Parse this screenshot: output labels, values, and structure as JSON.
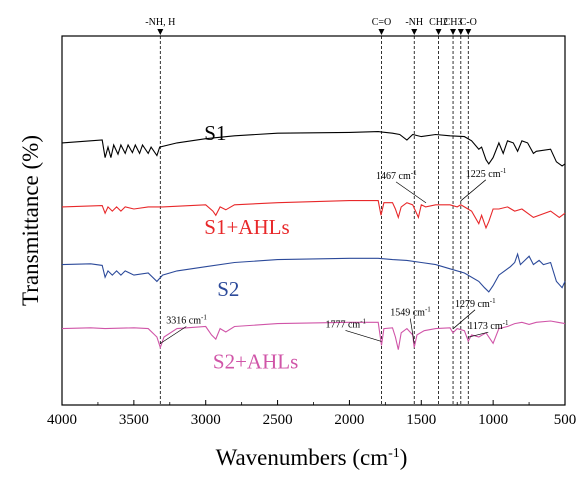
{
  "chart_data": {
    "type": "line",
    "xlabel": "Wavenumbers (cm",
    "xlabel_sup": "-1",
    "xlabel_close": ")",
    "ylabel": "Transmittance (%)",
    "xlim": [
      4000,
      500
    ],
    "x_reversed": true,
    "xticks": [
      4000,
      3500,
      3000,
      2500,
      2000,
      1500,
      1000,
      500
    ],
    "grid": false,
    "legend": "inline",
    "series": [
      {
        "name": "S1",
        "color": "#000000",
        "offset": 3,
        "points": [
          [
            4000,
            0.55
          ],
          [
            3800,
            0.6
          ],
          [
            3720,
            0.62
          ],
          [
            3700,
            0.2
          ],
          [
            3680,
            0.45
          ],
          [
            3660,
            0.2
          ],
          [
            3640,
            0.5
          ],
          [
            3610,
            0.28
          ],
          [
            3590,
            0.5
          ],
          [
            3560,
            0.3
          ],
          [
            3540,
            0.5
          ],
          [
            3510,
            0.32
          ],
          [
            3490,
            0.5
          ],
          [
            3460,
            0.3
          ],
          [
            3440,
            0.5
          ],
          [
            3400,
            0.3
          ],
          [
            3380,
            0.45
          ],
          [
            3340,
            0.25
          ],
          [
            3320,
            0.45
          ],
          [
            3200,
            0.55
          ],
          [
            3000,
            0.65
          ],
          [
            2800,
            0.72
          ],
          [
            2500,
            0.78
          ],
          [
            2000,
            0.8
          ],
          [
            1800,
            0.82
          ],
          [
            1700,
            0.78
          ],
          [
            1650,
            0.75
          ],
          [
            1600,
            0.62
          ],
          [
            1560,
            0.75
          ],
          [
            1500,
            0.7
          ],
          [
            1400,
            0.75
          ],
          [
            1300,
            0.72
          ],
          [
            1200,
            0.7
          ],
          [
            1150,
            0.6
          ],
          [
            1100,
            0.4
          ],
          [
            1080,
            0.45
          ],
          [
            1050,
            0.15
          ],
          [
            1030,
            0.05
          ],
          [
            1000,
            0.2
          ],
          [
            960,
            0.55
          ],
          [
            930,
            0.3
          ],
          [
            900,
            0.6
          ],
          [
            860,
            0.55
          ],
          [
            830,
            0.35
          ],
          [
            800,
            0.6
          ],
          [
            760,
            0.55
          ],
          [
            720,
            0.3
          ],
          [
            700,
            0.35
          ],
          [
            600,
            0.4
          ],
          [
            560,
            0.1
          ],
          [
            520,
            0.0
          ],
          [
            500,
            0.05
          ]
        ]
      },
      {
        "name": "S1+AHLs",
        "color": "#e8282a",
        "offset": 2,
        "points": [
          [
            4000,
            0.55
          ],
          [
            3720,
            0.58
          ],
          [
            3700,
            0.4
          ],
          [
            3680,
            0.55
          ],
          [
            3650,
            0.45
          ],
          [
            3620,
            0.55
          ],
          [
            3590,
            0.45
          ],
          [
            3560,
            0.55
          ],
          [
            3500,
            0.5
          ],
          [
            3400,
            0.55
          ],
          [
            3300,
            0.55
          ],
          [
            3000,
            0.6
          ],
          [
            2950,
            0.45
          ],
          [
            2930,
            0.35
          ],
          [
            2900,
            0.55
          ],
          [
            2860,
            0.48
          ],
          [
            2800,
            0.6
          ],
          [
            2500,
            0.65
          ],
          [
            2000,
            0.7
          ],
          [
            1800,
            0.7
          ],
          [
            1780,
            0.35
          ],
          [
            1760,
            0.65
          ],
          [
            1700,
            0.65
          ],
          [
            1680,
            0.5
          ],
          [
            1660,
            0.3
          ],
          [
            1640,
            0.55
          ],
          [
            1600,
            0.65
          ],
          [
            1560,
            0.6
          ],
          [
            1520,
            0.3
          ],
          [
            1500,
            0.6
          ],
          [
            1470,
            0.55
          ],
          [
            1400,
            0.6
          ],
          [
            1300,
            0.6
          ],
          [
            1250,
            0.55
          ],
          [
            1225,
            0.6
          ],
          [
            1200,
            0.55
          ],
          [
            1150,
            0.45
          ],
          [
            1100,
            0.15
          ],
          [
            1080,
            0.35
          ],
          [
            1050,
            0.05
          ],
          [
            1030,
            0.2
          ],
          [
            1000,
            0.5
          ],
          [
            960,
            0.5
          ],
          [
            900,
            0.55
          ],
          [
            850,
            0.45
          ],
          [
            800,
            0.5
          ],
          [
            720,
            0.3
          ],
          [
            600,
            0.45
          ],
          [
            540,
            0.3
          ],
          [
            500,
            0.4
          ]
        ]
      },
      {
        "name": "S2",
        "color": "#2c4a9a",
        "offset": 1,
        "points": [
          [
            4000,
            0.7
          ],
          [
            3800,
            0.72
          ],
          [
            3720,
            0.68
          ],
          [
            3700,
            0.4
          ],
          [
            3680,
            0.55
          ],
          [
            3650,
            0.45
          ],
          [
            3620,
            0.55
          ],
          [
            3590,
            0.45
          ],
          [
            3560,
            0.55
          ],
          [
            3500,
            0.45
          ],
          [
            3400,
            0.5
          ],
          [
            3340,
            0.3
          ],
          [
            3300,
            0.45
          ],
          [
            3200,
            0.55
          ],
          [
            3000,
            0.65
          ],
          [
            2800,
            0.75
          ],
          [
            2500,
            0.82
          ],
          [
            2000,
            0.85
          ],
          [
            1800,
            0.85
          ],
          [
            1700,
            0.82
          ],
          [
            1600,
            0.8
          ],
          [
            1500,
            0.75
          ],
          [
            1400,
            0.7
          ],
          [
            1300,
            0.6
          ],
          [
            1200,
            0.5
          ],
          [
            1100,
            0.3
          ],
          [
            1060,
            0.15
          ],
          [
            1030,
            0.05
          ],
          [
            1000,
            0.2
          ],
          [
            960,
            0.45
          ],
          [
            920,
            0.55
          ],
          [
            880,
            0.65
          ],
          [
            850,
            0.75
          ],
          [
            830,
            0.95
          ],
          [
            810,
            0.7
          ],
          [
            780,
            0.8
          ],
          [
            750,
            0.9
          ],
          [
            720,
            0.7
          ],
          [
            680,
            0.8
          ],
          [
            650,
            0.7
          ],
          [
            600,
            0.75
          ],
          [
            560,
            0.3
          ],
          [
            520,
            0.15
          ],
          [
            500,
            0.3
          ]
        ]
      },
      {
        "name": "S2+AHLs",
        "color": "#d055a8",
        "offset": 0,
        "points": [
          [
            4000,
            0.7
          ],
          [
            3800,
            0.72
          ],
          [
            3700,
            0.7
          ],
          [
            3500,
            0.72
          ],
          [
            3400,
            0.7
          ],
          [
            3340,
            0.5
          ],
          [
            3316,
            0.25
          ],
          [
            3290,
            0.5
          ],
          [
            3200,
            0.7
          ],
          [
            3000,
            0.75
          ],
          [
            2960,
            0.55
          ],
          [
            2930,
            0.45
          ],
          [
            2900,
            0.7
          ],
          [
            2860,
            0.62
          ],
          [
            2800,
            0.75
          ],
          [
            2500,
            0.82
          ],
          [
            2000,
            0.85
          ],
          [
            1800,
            0.85
          ],
          [
            1777,
            0.3
          ],
          [
            1760,
            0.7
          ],
          [
            1700,
            0.72
          ],
          [
            1680,
            0.5
          ],
          [
            1660,
            0.2
          ],
          [
            1640,
            0.6
          ],
          [
            1600,
            0.7
          ],
          [
            1560,
            0.55
          ],
          [
            1549,
            0.25
          ],
          [
            1530,
            0.55
          ],
          [
            1480,
            0.65
          ],
          [
            1400,
            0.7
          ],
          [
            1300,
            0.72
          ],
          [
            1279,
            0.6
          ],
          [
            1250,
            0.7
          ],
          [
            1200,
            0.65
          ],
          [
            1173,
            0.4
          ],
          [
            1150,
            0.55
          ],
          [
            1100,
            0.5
          ],
          [
            1050,
            0.6
          ],
          [
            1000,
            0.35
          ],
          [
            960,
            0.7
          ],
          [
            900,
            0.75
          ],
          [
            850,
            0.82
          ],
          [
            800,
            0.85
          ],
          [
            750,
            0.8
          ],
          [
            700,
            0.85
          ],
          [
            600,
            0.88
          ],
          [
            550,
            0.85
          ],
          [
            500,
            0.82
          ]
        ]
      }
    ],
    "reference_lines": [
      {
        "x": 3316,
        "label": "-NH, H"
      },
      {
        "x": 1777,
        "label": "C=O"
      },
      {
        "x": 1549,
        "label": "-NH"
      },
      {
        "x": 1380,
        "label": "CH2"
      },
      {
        "x": 1279,
        "label": "CH3"
      },
      {
        "x": 1225,
        "label": ""
      },
      {
        "x": 1173,
        "label": "C-O"
      }
    ],
    "annotations": [
      {
        "text": "1467 cm",
        "sup": "-1",
        "series": "S1+AHLs",
        "at_x": 1467
      },
      {
        "text": "1225 cm",
        "sup": "-1",
        "series": "S1+AHLs",
        "at_x": 1225
      },
      {
        "text": "3316 cm",
        "sup": "-1",
        "series": "S2+AHLs",
        "at_x": 3316
      },
      {
        "text": "1549 cm",
        "sup": "-1",
        "series": "S2+AHLs",
        "at_x": 1549
      },
      {
        "text": "1777 cm",
        "sup": "-1",
        "series": "S2+AHLs",
        "at_x": 1777
      },
      {
        "text": "1279 cm",
        "sup": "-1",
        "series": "S2+AHLs",
        "at_x": 1279
      },
      {
        "text": "1173 cm",
        "sup": "-1",
        "series": "S2+AHLs",
        "at_x": 1173
      }
    ]
  }
}
